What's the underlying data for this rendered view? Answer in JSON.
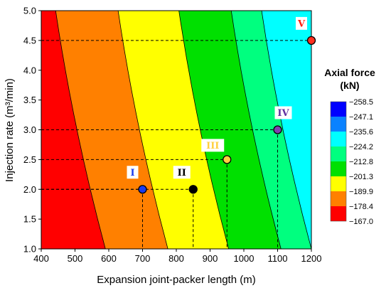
{
  "chart_data": {
    "type": "contour",
    "xlabel": "Expansion joint-packer length (m)",
    "ylabel": "Injection rate (m³/min)",
    "xlim": [
      400,
      1200
    ],
    "ylim": [
      1.0,
      5.0
    ],
    "xticks": [
      "400",
      "500",
      "600",
      "700",
      "800",
      "900",
      "1000",
      "1100",
      "1200"
    ],
    "yticks": [
      "1.0",
      "1.5",
      "2.0",
      "2.5",
      "3.0",
      "3.5",
      "4.0",
      "4.5",
      "5.0"
    ],
    "colorbar": {
      "title_line1": "Axial force",
      "title_line2": "(kN)",
      "levels": [
        "−258.5",
        "−247.1",
        "−235.6",
        "−224.2",
        "−212.8",
        "−201.3",
        "−189.9",
        "−178.4",
        "−167.0"
      ],
      "colors": [
        "#0000ff",
        "#0a82ff",
        "#00ffff",
        "#00ff7f",
        "#00e000",
        "#ffff00",
        "#ff8000",
        "#ff0000"
      ]
    },
    "bands_at_bottom": [
      {
        "color": "#ff0000",
        "x_from": 400,
        "x_to": 590
      },
      {
        "color": "#ff8000",
        "x_from": 590,
        "x_to": 775
      },
      {
        "color": "#ffff00",
        "x_from": 775,
        "x_to": 955
      },
      {
        "color": "#00e000",
        "x_from": 955,
        "x_to": 1110
      },
      {
        "color": "#00ff7f",
        "x_from": 1110,
        "x_to": 1200
      }
    ],
    "points": [
      {
        "label": "I",
        "x": 700,
        "y": 2.0,
        "fill": "#1a3cf0",
        "label_color": "#1a3cf0"
      },
      {
        "label": "II",
        "x": 850,
        "y": 2.0,
        "fill": "#000000",
        "label_color": "#000000"
      },
      {
        "label": "III",
        "x": 950,
        "y": 2.5,
        "fill": "#ffd040",
        "label_color": "#ffd040"
      },
      {
        "label": "IV",
        "x": 1100,
        "y": 3.0,
        "fill": "#8040b0",
        "label_color": "#6030a0"
      },
      {
        "label": "V",
        "x": 1200,
        "y": 4.5,
        "fill": "#ff3020",
        "label_color": "#ff2010"
      }
    ]
  }
}
